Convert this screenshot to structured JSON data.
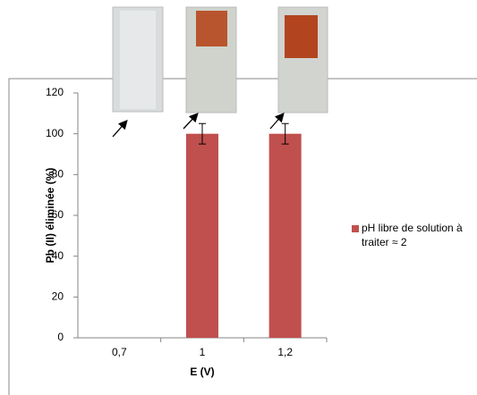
{
  "chart_data": {
    "type": "bar",
    "categories": [
      "0,7",
      "1",
      "1,2"
    ],
    "series": [
      {
        "name": "pH libre de solution à traiter ≈ 2",
        "color": "#c0504d",
        "values": [
          0,
          100,
          100
        ],
        "errors": [
          null,
          5,
          5
        ]
      }
    ],
    "ylim": [
      0,
      120
    ],
    "yticks": [
      0,
      20,
      40,
      60,
      80,
      100,
      120
    ],
    "xlabel": "E (V)",
    "ylabel": "Pb (II) éliminée (%)",
    "legend": "right"
  }
}
